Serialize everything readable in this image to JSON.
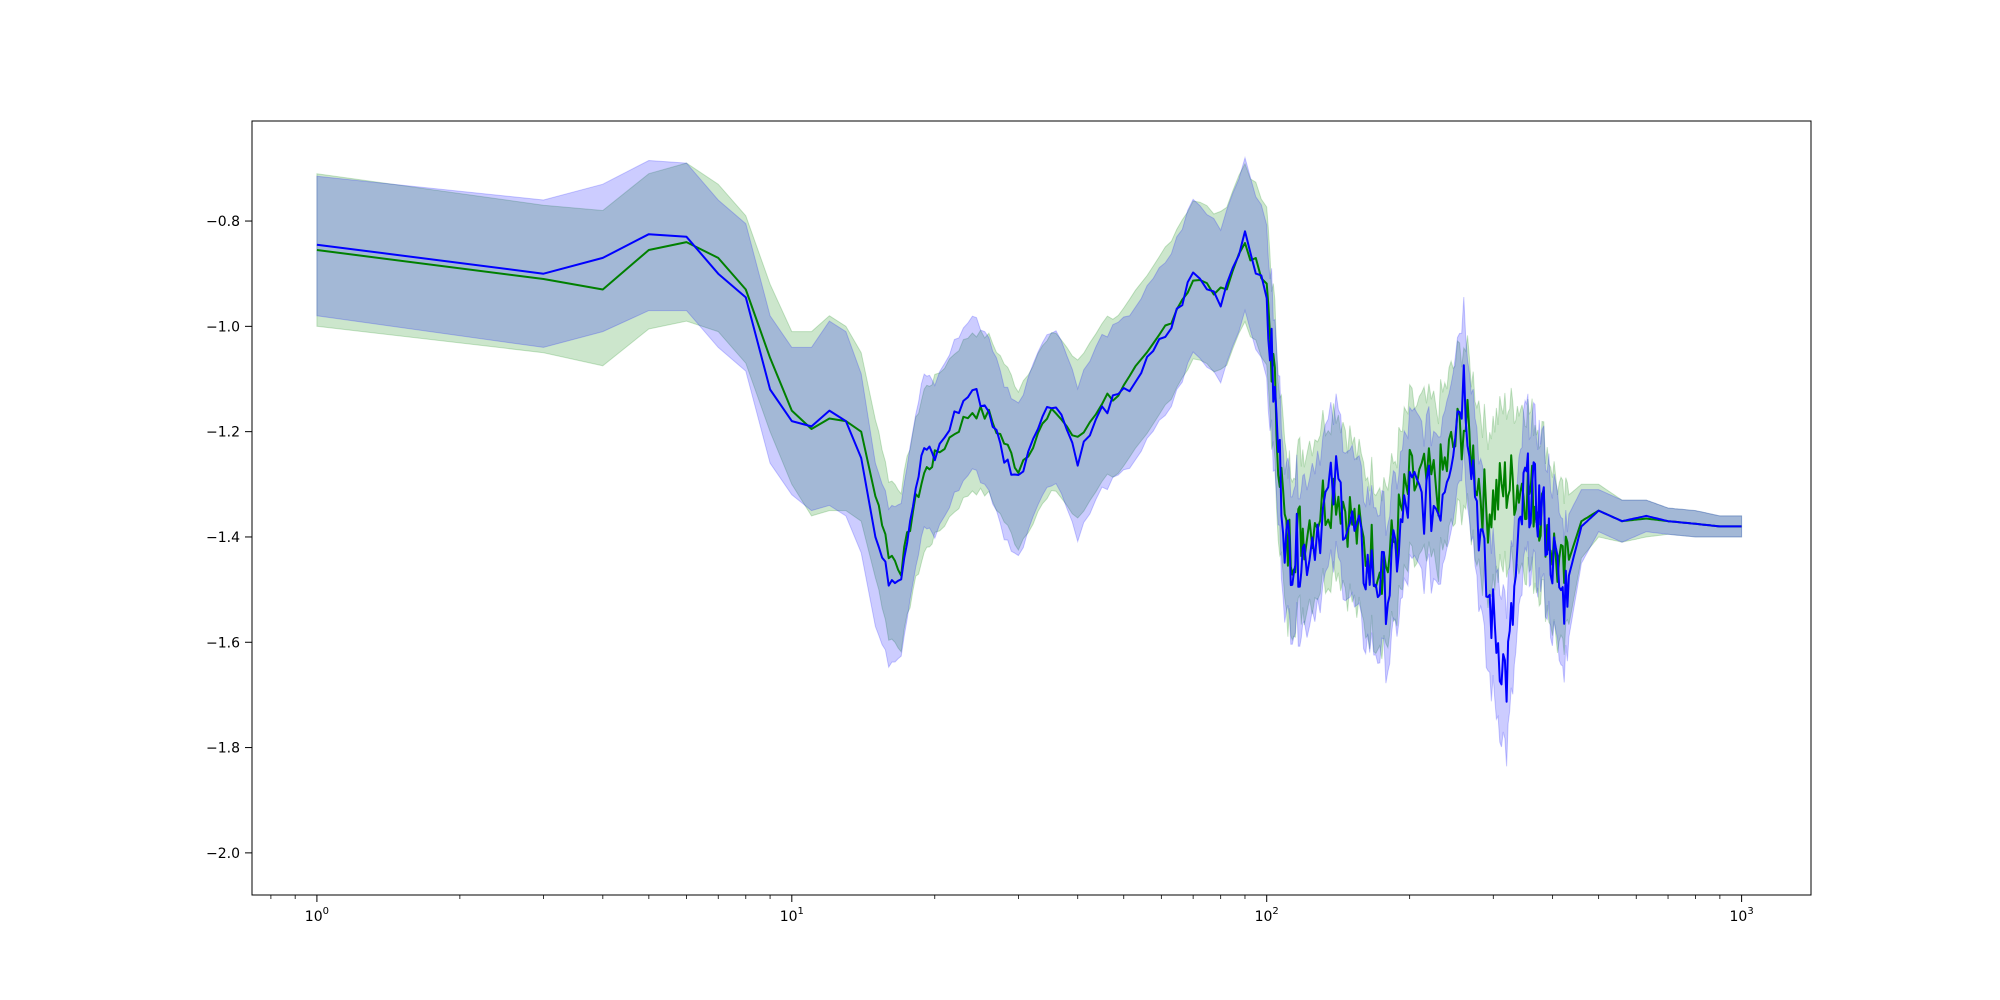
{
  "chart_data": {
    "type": "line",
    "title": "",
    "xlabel": "",
    "ylabel": "",
    "xscale": "log",
    "xlim": [
      0.73,
      1400
    ],
    "ylim": [
      -2.08,
      -0.61
    ],
    "grid": false,
    "x_ticks": [
      {
        "value": 1,
        "base": "10",
        "exp": "0"
      },
      {
        "value": 10,
        "base": "10",
        "exp": "1"
      },
      {
        "value": 100,
        "base": "10",
        "exp": "2"
      },
      {
        "value": 1000,
        "base": "10",
        "exp": "3"
      }
    ],
    "y_ticks": [
      {
        "value": -2.0,
        "label": "−2.0"
      },
      {
        "value": -1.8,
        "label": "−1.8"
      },
      {
        "value": -1.6,
        "label": "−1.6"
      },
      {
        "value": -1.4,
        "label": "−1.4"
      },
      {
        "value": -1.2,
        "label": "−1.2"
      },
      {
        "value": -1.0,
        "label": "−1.0"
      },
      {
        "value": -0.8,
        "label": "−0.8"
      }
    ],
    "colors": {
      "green_line": "#008000",
      "green_band": "#008000",
      "blue_line": "#0000ff",
      "blue_band": "#0000ff"
    },
    "series": [
      {
        "color": "#008000",
        "band_opacity": 0.2,
        "x": [
          1,
          3,
          4,
          5,
          6,
          7,
          8,
          9,
          10,
          11,
          12,
          13,
          14,
          15,
          16,
          17,
          18,
          19,
          20,
          22,
          24,
          26,
          28,
          30,
          33,
          36,
          40,
          45,
          50,
          56,
          63,
          70,
          80,
          90,
          100,
          110,
          120,
          140,
          160,
          180,
          200,
          230,
          260,
          290,
          320,
          350,
          380,
          420,
          460,
          500,
          560,
          630,
          700,
          800,
          900,
          1000
        ],
        "y": [
          -0.855,
          -0.91,
          -0.93,
          -0.855,
          -0.84,
          -0.87,
          -0.93,
          -1.06,
          -1.16,
          -1.195,
          -1.175,
          -1.18,
          -1.2,
          -1.31,
          -1.43,
          -1.46,
          -1.35,
          -1.28,
          -1.25,
          -1.2,
          -1.16,
          -1.17,
          -1.22,
          -1.27,
          -1.2,
          -1.16,
          -1.22,
          -1.14,
          -1.12,
          -1.06,
          -0.98,
          -0.91,
          -0.94,
          -0.84,
          -0.93,
          -1.42,
          -1.38,
          -1.3,
          -1.42,
          -1.45,
          -1.3,
          -1.3,
          -1.18,
          -1.35,
          -1.3,
          -1.3,
          -1.35,
          -1.48,
          -1.37,
          -1.35,
          -1.37,
          -1.365,
          -1.37,
          -1.375,
          -1.38,
          -1.38
        ],
        "upper": [
          -0.71,
          -0.77,
          -0.78,
          -0.71,
          -0.69,
          -0.73,
          -0.79,
          -0.92,
          -1.01,
          -1.01,
          -0.98,
          -1.0,
          -1.05,
          -1.17,
          -1.29,
          -1.31,
          -1.2,
          -1.12,
          -1.1,
          -1.05,
          -1.01,
          -1.02,
          -1.07,
          -1.12,
          -1.05,
          -1.01,
          -1.07,
          -0.99,
          -0.97,
          -0.91,
          -0.83,
          -0.76,
          -0.79,
          -0.69,
          -0.78,
          -1.27,
          -1.23,
          -1.15,
          -1.27,
          -1.3,
          -1.15,
          -1.15,
          -1.03,
          -1.2,
          -1.15,
          -1.15,
          -1.2,
          -1.33,
          -1.3,
          -1.3,
          -1.33,
          -1.33,
          -1.345,
          -1.35,
          -1.36,
          -1.36
        ],
        "lower": [
          -1.0,
          -1.05,
          -1.075,
          -1.005,
          -0.99,
          -1.01,
          -1.07,
          -1.2,
          -1.3,
          -1.36,
          -1.35,
          -1.35,
          -1.37,
          -1.47,
          -1.59,
          -1.61,
          -1.5,
          -1.43,
          -1.4,
          -1.35,
          -1.31,
          -1.32,
          -1.37,
          -1.42,
          -1.35,
          -1.31,
          -1.37,
          -1.29,
          -1.27,
          -1.21,
          -1.13,
          -1.06,
          -1.09,
          -0.99,
          -1.08,
          -1.57,
          -1.53,
          -1.45,
          -1.57,
          -1.6,
          -1.45,
          -1.45,
          -1.33,
          -1.5,
          -1.45,
          -1.45,
          -1.5,
          -1.63,
          -1.44,
          -1.4,
          -1.41,
          -1.4,
          -1.395,
          -1.4,
          -1.4,
          -1.4
        ]
      },
      {
        "color": "#0000ff",
        "band_opacity": 0.2,
        "x": [
          1,
          3,
          4,
          5,
          6,
          7,
          8,
          9,
          10,
          11,
          12,
          13,
          14,
          15,
          16,
          17,
          18,
          19,
          20,
          22,
          24,
          26,
          28,
          30,
          33,
          36,
          40,
          45,
          50,
          56,
          63,
          70,
          80,
          90,
          100,
          110,
          120,
          140,
          160,
          180,
          200,
          230,
          260,
          290,
          320,
          350,
          380,
          420,
          460,
          500,
          560,
          630,
          700,
          800,
          900,
          1000
        ],
        "y": [
          -0.845,
          -0.9,
          -0.87,
          -0.825,
          -0.83,
          -0.9,
          -0.945,
          -1.12,
          -1.18,
          -1.19,
          -1.16,
          -1.18,
          -1.25,
          -1.4,
          -1.48,
          -1.47,
          -1.33,
          -1.23,
          -1.25,
          -1.17,
          -1.12,
          -1.16,
          -1.25,
          -1.29,
          -1.18,
          -1.14,
          -1.25,
          -1.16,
          -1.13,
          -1.07,
          -1.0,
          -0.9,
          -0.95,
          -0.82,
          -0.95,
          -1.42,
          -1.43,
          -1.3,
          -1.45,
          -1.5,
          -1.32,
          -1.34,
          -1.1,
          -1.5,
          -1.67,
          -1.3,
          -1.35,
          -1.52,
          -1.38,
          -1.35,
          -1.37,
          -1.36,
          -1.37,
          -1.375,
          -1.38,
          -1.38
        ],
        "upper": [
          -0.715,
          -0.76,
          -0.73,
          -0.685,
          -0.69,
          -0.76,
          -0.805,
          -0.98,
          -1.04,
          -1.04,
          -0.99,
          -1.01,
          -1.09,
          -1.26,
          -1.34,
          -1.33,
          -1.19,
          -1.09,
          -1.11,
          -1.03,
          -0.98,
          -1.02,
          -1.11,
          -1.15,
          -1.04,
          -1.0,
          -1.11,
          -1.02,
          -0.99,
          -0.93,
          -0.86,
          -0.76,
          -0.81,
          -0.68,
          -0.81,
          -1.28,
          -1.29,
          -1.16,
          -1.31,
          -1.36,
          -1.18,
          -1.2,
          -0.96,
          -1.36,
          -1.53,
          -1.16,
          -1.21,
          -1.38,
          -1.31,
          -1.31,
          -1.33,
          -1.33,
          -1.345,
          -1.35,
          -1.36,
          -1.36
        ],
        "lower": [
          -0.98,
          -1.04,
          -1.01,
          -0.97,
          -0.97,
          -1.04,
          -1.085,
          -1.26,
          -1.32,
          -1.35,
          -1.34,
          -1.36,
          -1.43,
          -1.57,
          -1.64,
          -1.62,
          -1.48,
          -1.38,
          -1.4,
          -1.32,
          -1.27,
          -1.31,
          -1.4,
          -1.44,
          -1.33,
          -1.29,
          -1.4,
          -1.31,
          -1.28,
          -1.22,
          -1.15,
          -1.05,
          -1.1,
          -0.97,
          -1.1,
          -1.56,
          -1.57,
          -1.44,
          -1.59,
          -1.64,
          -1.46,
          -1.48,
          -1.24,
          -1.64,
          -1.81,
          -1.44,
          -1.49,
          -1.66,
          -1.45,
          -1.39,
          -1.41,
          -1.39,
          -1.395,
          -1.4,
          -1.4,
          -1.4
        ]
      }
    ]
  }
}
